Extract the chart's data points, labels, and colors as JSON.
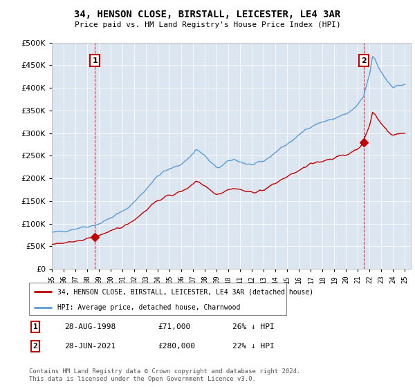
{
  "title": "34, HENSON CLOSE, BIRSTALL, LEICESTER, LE4 3AR",
  "subtitle": "Price paid vs. HM Land Registry's House Price Index (HPI)",
  "legend_line1": "34, HENSON CLOSE, BIRSTALL, LEICESTER, LE4 3AR (detached house)",
  "legend_line2": "HPI: Average price, detached house, Charnwood",
  "transaction1_date": "28-AUG-1998",
  "transaction1_price": "£71,000",
  "transaction1_hpi": "26% ↓ HPI",
  "transaction2_date": "28-JUN-2021",
  "transaction2_price": "£280,000",
  "transaction2_hpi": "22% ↓ HPI",
  "footnote": "Contains HM Land Registry data © Crown copyright and database right 2024.\nThis data is licensed under the Open Government Licence v3.0.",
  "hpi_color": "#5b9bd5",
  "price_color": "#c00000",
  "bg_color": "#dce6f1",
  "marker1_year": 1998.65,
  "marker1_price": 71000,
  "marker2_year": 2021.49,
  "marker2_price": 280000,
  "ylim_max": 500000,
  "ylim_min": 0,
  "xlim_min": 1995.0,
  "xlim_max": 2025.5
}
